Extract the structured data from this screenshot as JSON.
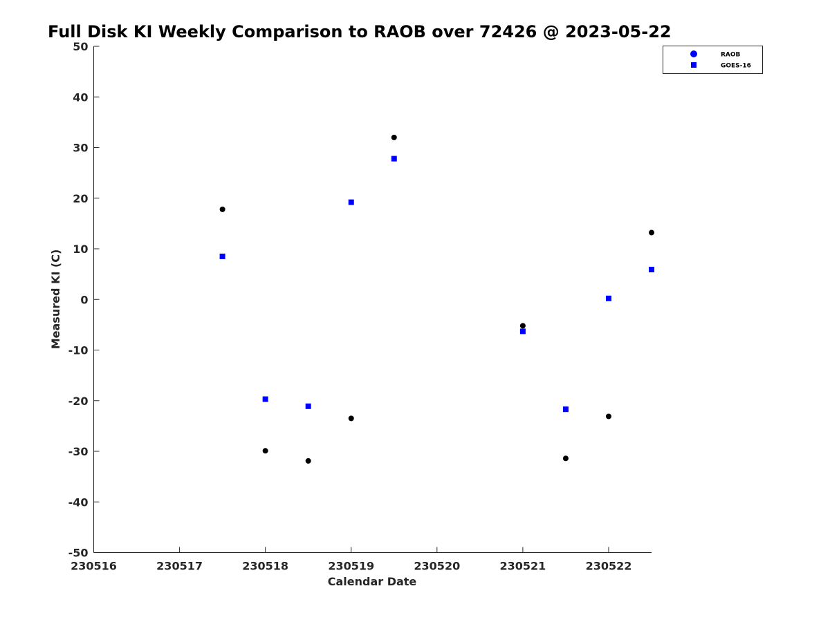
{
  "chart_data": {
    "type": "scatter",
    "title": "Full Disk KI Weekly Comparison to RAOB over 72426 @ 2023-05-22",
    "xlabel": "Calendar Date",
    "ylabel": "Measured KI (C)",
    "xlim": [
      "2023-05-16",
      "2023-05-22T12:00"
    ],
    "ylim": [
      -50,
      50
    ],
    "grid": false,
    "legend_position": "top-right",
    "x_ticks": [
      {
        "x": "2023-05-16",
        "label": "230516"
      },
      {
        "x": "2023-05-17",
        "label": "230517"
      },
      {
        "x": "2023-05-18",
        "label": "230518"
      },
      {
        "x": "2023-05-19",
        "label": "230519"
      },
      {
        "x": "2023-05-20",
        "label": "230520"
      },
      {
        "x": "2023-05-21",
        "label": "230521"
      },
      {
        "x": "2023-05-22",
        "label": "230522"
      }
    ],
    "y_ticks": [
      50,
      40,
      30,
      20,
      10,
      0,
      -10,
      -20,
      -30,
      -40,
      -50
    ],
    "series": [
      {
        "name": "RAOB",
        "marker": "circle",
        "color": "#000000",
        "legend_color": "#0000ff",
        "points": [
          {
            "x": "2023-05-17T12:00",
            "y": 17.8
          },
          {
            "x": "2023-05-18T00:00",
            "y": -29.9
          },
          {
            "x": "2023-05-18T12:00",
            "y": -31.9
          },
          {
            "x": "2023-05-19T00:00",
            "y": -23.5
          },
          {
            "x": "2023-05-19T12:00",
            "y": 32.0
          },
          {
            "x": "2023-05-21T00:00",
            "y": -5.2
          },
          {
            "x": "2023-05-21T12:00",
            "y": -31.4
          },
          {
            "x": "2023-05-22T00:00",
            "y": -23.1
          },
          {
            "x": "2023-05-22T12:00",
            "y": 13.2
          }
        ]
      },
      {
        "name": "GOES-16",
        "marker": "square",
        "color": "#0000ff",
        "legend_color": "#0000ff",
        "points": [
          {
            "x": "2023-05-17T12:00",
            "y": 8.5
          },
          {
            "x": "2023-05-18T00:00",
            "y": -19.7
          },
          {
            "x": "2023-05-18T12:00",
            "y": -21.1
          },
          {
            "x": "2023-05-19T00:00",
            "y": 19.2
          },
          {
            "x": "2023-05-19T12:00",
            "y": 27.8
          },
          {
            "x": "2023-05-21T00:00",
            "y": -6.3
          },
          {
            "x": "2023-05-21T12:00",
            "y": -21.7
          },
          {
            "x": "2023-05-22T00:00",
            "y": 0.2
          },
          {
            "x": "2023-05-22T12:00",
            "y": 5.9
          }
        ]
      }
    ]
  }
}
